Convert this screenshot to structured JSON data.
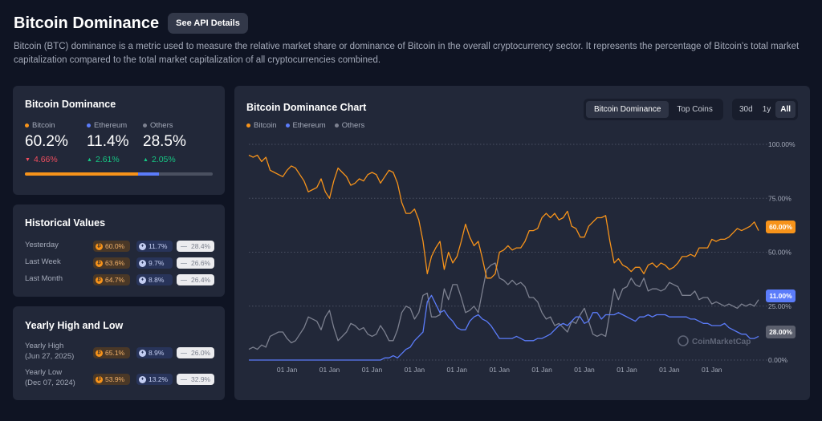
{
  "header": {
    "title": "Bitcoin Dominance",
    "api_button": "See API Details",
    "description": "Bitcoin (BTC) dominance is a metric used to measure the relative market share or dominance of Bitcoin in the overall cryptocurrency sector. It represents the percentage of Bitcoin's total market capitalization compared to the total market capitalization of all cryptocurrencies combined."
  },
  "dominance_card": {
    "title": "Bitcoin Dominance",
    "btc": {
      "name": "Bitcoin",
      "value": "60.2%",
      "change": "4.66%",
      "direction": "down"
    },
    "eth": {
      "name": "Ethereum",
      "value": "11.4%",
      "change": "2.61%",
      "direction": "up"
    },
    "others": {
      "name": "Others",
      "value": "28.5%",
      "change": "2.05%",
      "direction": "up"
    },
    "bar_shares": {
      "btc": 60.2,
      "eth": 11.4,
      "others": 28.5
    }
  },
  "historical": {
    "title": "Historical Values",
    "rows": [
      {
        "label": "Yesterday",
        "btc": "60.0%",
        "eth": "11.7%",
        "others": "28.4%"
      },
      {
        "label": "Last Week",
        "btc": "63.6%",
        "eth": "9.7%",
        "others": "26.6%"
      },
      {
        "label": "Last Month",
        "btc": "64.7%",
        "eth": "8.8%",
        "others": "26.4%"
      }
    ]
  },
  "yearly": {
    "title": "Yearly High and Low",
    "high_label": "Yearly High",
    "high_date": "(Jun 27, 2025)",
    "high": {
      "btc": "65.1%",
      "eth": "8.9%",
      "others": "26.0%"
    },
    "low_label": "Yearly Low",
    "low_date": "(Dec 07, 2024)",
    "low": {
      "btc": "53.9%",
      "eth": "13.2%",
      "others": "32.9%"
    }
  },
  "chart_panel": {
    "title": "Bitcoin Dominance Chart",
    "view_tabs": [
      "Bitcoin Dominance",
      "Top Coins"
    ],
    "active_view": "Bitcoin Dominance",
    "range_tabs": [
      "30d",
      "1y",
      "All"
    ],
    "active_range": "All",
    "watermark": "CoinMarketCap"
  },
  "colors": {
    "btc": "#f7931a",
    "eth": "#5b7cfa",
    "others": "#7d8190",
    "down": "#f04d5e",
    "up": "#16c784"
  },
  "chart_data": {
    "type": "line",
    "x": [
      0,
      1,
      2,
      3,
      4,
      5,
      6,
      7,
      8,
      9,
      10,
      11,
      12,
      13,
      14,
      15,
      16,
      17,
      18,
      19,
      20,
      21,
      22,
      23,
      24,
      25,
      26,
      27,
      28,
      29,
      30,
      31,
      32,
      33,
      34,
      35,
      36,
      37,
      38,
      39,
      40,
      41,
      42,
      43,
      44,
      45,
      46,
      47,
      48,
      49,
      50,
      51,
      52,
      53,
      54,
      55,
      56,
      57,
      58,
      59,
      60,
      61,
      62,
      63,
      64,
      65,
      66,
      67,
      68,
      69,
      70,
      71,
      72,
      73,
      74,
      75,
      76,
      77,
      78,
      79,
      80,
      81,
      82,
      83,
      84,
      85,
      86,
      87,
      88,
      89,
      90,
      91,
      92,
      93,
      94,
      95,
      96,
      97,
      98,
      99,
      100,
      101,
      102,
      103,
      104,
      105,
      106,
      107,
      108,
      109,
      110,
      111,
      112,
      113,
      114,
      115,
      116,
      117,
      118,
      119,
      120
    ],
    "x_tick_labels": [
      "01 Jan",
      "01 Jan",
      "01 Jan",
      "01 Jan",
      "01 Jan",
      "01 Jan",
      "01 Jan",
      "01 Jan",
      "01 Jan",
      "01 Jan",
      "01 Jan"
    ],
    "x_tick_positions": [
      9,
      19,
      29,
      39,
      49,
      59,
      69,
      79,
      89,
      99,
      109
    ],
    "y_ticks": [
      "100.00%",
      "75.00%",
      "50.00%",
      "25.00%",
      "0.00%"
    ],
    "ylim": [
      0,
      100
    ],
    "series": [
      {
        "name": "Bitcoin",
        "color": "#f7931a",
        "end_label": "60.00%",
        "values": [
          95,
          94,
          95,
          92,
          94,
          88,
          87,
          86,
          85,
          88,
          90,
          89,
          86,
          83,
          78,
          79,
          80,
          84,
          78,
          75,
          83,
          89,
          87,
          85,
          81,
          82,
          84,
          83,
          86,
          87,
          86,
          82,
          85,
          88,
          87,
          82,
          73,
          68,
          68,
          70,
          65,
          55,
          40,
          48,
          52,
          55,
          42,
          50,
          45,
          48,
          55,
          63,
          57,
          53,
          55,
          47,
          38,
          38,
          40,
          50,
          51,
          53,
          51,
          52,
          52,
          55,
          60,
          60,
          61,
          66,
          68,
          66,
          68,
          65,
          66,
          69,
          62,
          61,
          57,
          57,
          62,
          64,
          66,
          66,
          67,
          55,
          45,
          47,
          44,
          43,
          41,
          43,
          43,
          40,
          44,
          45,
          43,
          45,
          44,
          42,
          43,
          45,
          48,
          48,
          49,
          48,
          52,
          52,
          52,
          56,
          55,
          56,
          56,
          57,
          59,
          61,
          60,
          61,
          62,
          64,
          60
        ]
      },
      {
        "name": "Ethereum",
        "color": "#5b7cfa",
        "end_label": "11.00%",
        "values": [
          0,
          0,
          0,
          0,
          0,
          0,
          0,
          0,
          0,
          0,
          0,
          0,
          0,
          0,
          0,
          0,
          0,
          0,
          0,
          0,
          0,
          0,
          0,
          0,
          0,
          0,
          0,
          0,
          0,
          0,
          0,
          0,
          1,
          1,
          2,
          1,
          3,
          5,
          6,
          9,
          11,
          13,
          27,
          30,
          26,
          22,
          23,
          20,
          18,
          15,
          14,
          14,
          18,
          20,
          21,
          19,
          18,
          16,
          13,
          10,
          10,
          10,
          10,
          11,
          10,
          9,
          9,
          9,
          10,
          10,
          11,
          12,
          14,
          16,
          17,
          16,
          18,
          20,
          20,
          17,
          18,
          22,
          22,
          19,
          21,
          21,
          21,
          22,
          21,
          20,
          19,
          18,
          20,
          20,
          21,
          20,
          21,
          21,
          21,
          20,
          20,
          20,
          20,
          20,
          19,
          19,
          18,
          17,
          17,
          16,
          16,
          16,
          17,
          15,
          14,
          13,
          12,
          12,
          10,
          10,
          11
        ]
      },
      {
        "name": "Others",
        "color": "#7d8190",
        "end_label": "28.00%",
        "values": [
          5,
          6,
          5,
          7,
          6,
          11,
          12,
          13,
          13,
          10,
          8,
          9,
          12,
          15,
          20,
          19,
          18,
          14,
          20,
          23,
          15,
          9,
          11,
          13,
          17,
          16,
          14,
          15,
          12,
          11,
          12,
          16,
          13,
          9,
          9,
          14,
          22,
          25,
          24,
          19,
          22,
          30,
          31,
          20,
          20,
          21,
          33,
          28,
          35,
          35,
          29,
          22,
          23,
          25,
          22,
          32,
          42,
          44,
          45,
          38,
          37,
          35,
          37,
          35,
          36,
          34,
          29,
          29,
          27,
          22,
          19,
          20,
          16,
          17,
          15,
          13,
          18,
          17,
          21,
          24,
          18,
          12,
          11,
          12,
          11,
          22,
          33,
          28,
          33,
          34,
          38,
          35,
          34,
          38,
          32,
          33,
          33,
          32,
          33,
          36,
          35,
          34,
          30,
          30,
          30,
          32,
          28,
          29,
          29,
          26,
          27,
          26,
          25,
          26,
          25,
          24,
          26,
          25,
          26,
          25,
          28
        ]
      }
    ],
    "title": "Bitcoin Dominance Chart"
  }
}
